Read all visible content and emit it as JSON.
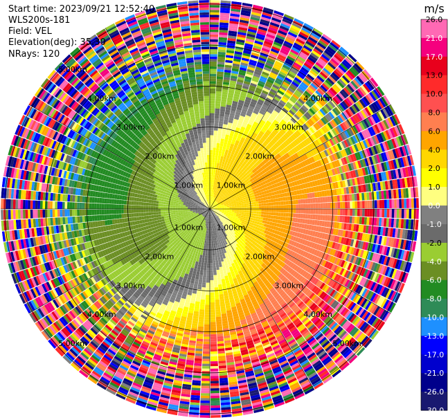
{
  "header": {
    "start_time": "Start time: 2023/09/21 12:52:40",
    "instrument": "WLS200s-181",
    "field": "Field: VEL",
    "elevation": "Elevation(deg): 35.30",
    "nrays": "NRays: 120"
  },
  "colorbar": {
    "unit": "m/s",
    "ticks": [
      "26.0",
      "21.0",
      "17.0",
      "13.0",
      "10.0",
      "8.0",
      "6.0",
      "4.0",
      "2.0",
      "1.0",
      "0.0",
      "-1.0",
      "-2.0",
      "-4.0",
      "-6.0",
      "-8.0",
      "-10.0",
      "-13.0",
      "-17.0",
      "-21.0",
      "-26.0",
      "-30.0"
    ],
    "colors": [
      "#ff69b4",
      "#f5007e",
      "#e8001c",
      "#ff2a2a",
      "#ff5050",
      "#ff7f50",
      "#ffa500",
      "#ffd700",
      "#ffff00",
      "#ffff80",
      "#808080",
      "#6b6b6b",
      "#9acd32",
      "#6b8e23",
      "#228b22",
      "#2e8b57",
      "#1e90ff",
      "#0000ff",
      "#0000cd",
      "#00008b",
      "#191970",
      "#000050"
    ]
  },
  "chart_data": {
    "type": "ppi",
    "nrays": 120,
    "range_rings_km": [
      1.0,
      2.0,
      3.0,
      4.0,
      5.0
    ],
    "range_labels": {
      "upper_left": [
        "1.00km",
        "2.00km",
        "3.00km",
        "4.00km",
        "5.00km"
      ],
      "upper_right": [
        "1.00km",
        "2.00km",
        "3.00km",
        "4.00km"
      ],
      "lower_left": [
        "1.00km",
        "2.00km",
        "3.00km",
        "4.00km",
        "5.00km"
      ],
      "lower_right": [
        "1.00km",
        "2.00km",
        "3.00km",
        "4.00km",
        "5.00km"
      ]
    },
    "velocity_min": -30.0,
    "velocity_max": 26.0
  }
}
